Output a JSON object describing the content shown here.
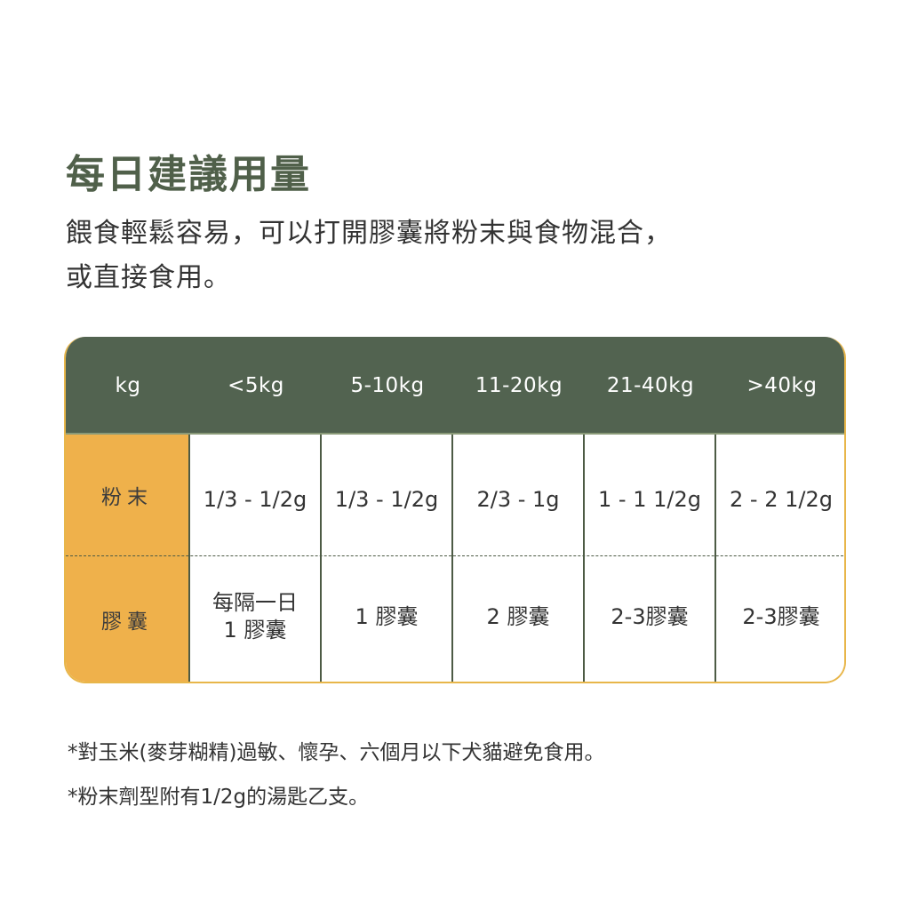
{
  "title": "每日建議用量",
  "intro": {
    "line1": "餵食輕鬆容易，可以打開膠囊將粉末與食物混合，",
    "line2": "或直接食用。"
  },
  "table": {
    "headers": [
      "kg",
      "<5kg",
      "5-10kg",
      "11-20kg",
      "21-40kg",
      ">40kg"
    ],
    "rows": [
      {
        "label": "粉末",
        "cells": [
          "1/3 - 1/2g",
          "1/3 - 1/2g",
          "2/3 - 1g",
          "1 - 1 1/2g",
          "2 - 2 1/2g"
        ]
      },
      {
        "label": "膠囊",
        "cells": [
          "每隔一日 1 膠囊",
          "1 膠囊",
          "2 膠囊",
          "2-3膠囊",
          "2-3膠囊"
        ]
      }
    ]
  },
  "notes": [
    "*對玉米(麥芽糊精)過敏、懷孕、六個月以下犬貓避免食用。",
    "*粉末劑型附有1/2g的湯匙乙支。"
  ],
  "colors": {
    "title": "#50604a",
    "header_bg": "#526350",
    "label_bg": "#efb14b",
    "border": "#4d5b45",
    "outline": "#e8b64a"
  }
}
